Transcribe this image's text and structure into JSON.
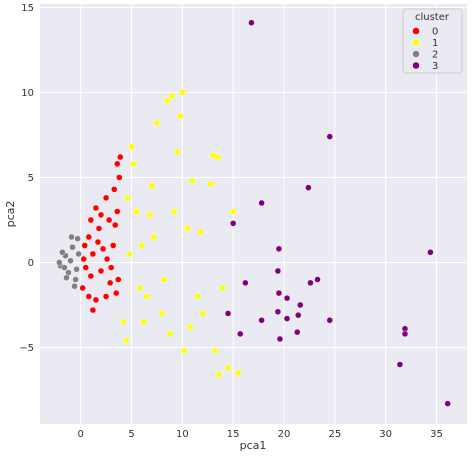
{
  "chart_data": {
    "type": "scatter",
    "title": "",
    "xlabel": "pca1",
    "ylabel": "pca2",
    "xlim": [
      -4,
      38
    ],
    "ylim": [
      -9.5,
      15.2
    ],
    "xticks": [
      0,
      5,
      10,
      15,
      20,
      25,
      30,
      35
    ],
    "yticks": [
      -5,
      0,
      5,
      10,
      15
    ],
    "grid": true,
    "legend": {
      "title": "cluster",
      "placement": "top-right",
      "entries": [
        {
          "label": "0",
          "color": "#ff0000"
        },
        {
          "label": "1",
          "color": "#ffff00"
        },
        {
          "label": "2",
          "color": "#808080"
        },
        {
          "label": "3",
          "color": "#800080"
        }
      ]
    },
    "colors": {
      "background": "#eaeaf2",
      "grid": "#ffffff",
      "point_edge": "#ffffff"
    },
    "series": [
      {
        "name": "0",
        "color": "#ff0000",
        "points": [
          [
            0.2,
            -1.5
          ],
          [
            0.8,
            -2.0
          ],
          [
            1.5,
            -2.2
          ],
          [
            2.5,
            -2.0
          ],
          [
            3.5,
            -1.8
          ],
          [
            1.0,
            -0.8
          ],
          [
            2.0,
            -0.5
          ],
          [
            3.0,
            -0.3
          ],
          [
            0.3,
            0.2
          ],
          [
            1.2,
            0.5
          ],
          [
            2.2,
            0.8
          ],
          [
            3.2,
            1.0
          ],
          [
            0.8,
            1.5
          ],
          [
            1.8,
            2.0
          ],
          [
            2.8,
            2.5
          ],
          [
            3.6,
            3.0
          ],
          [
            1.5,
            3.2
          ],
          [
            2.5,
            3.8
          ],
          [
            3.3,
            4.3
          ],
          [
            3.8,
            5.0
          ],
          [
            3.9,
            6.2
          ],
          [
            3.6,
            5.8
          ],
          [
            1.2,
            -2.8
          ],
          [
            2.9,
            -1.2
          ],
          [
            0.5,
            -0.3
          ],
          [
            1.7,
            1.2
          ],
          [
            2.6,
            0.2
          ],
          [
            3.4,
            2.2
          ],
          [
            2.0,
            2.8
          ],
          [
            1.0,
            2.5
          ],
          [
            0.4,
            1.0
          ],
          [
            3.7,
            -1.0
          ]
        ]
      },
      {
        "name": "1",
        "color": "#ffff00",
        "points": [
          [
            4.2,
            -3.5
          ],
          [
            4.5,
            -4.6
          ],
          [
            5.0,
            6.8
          ],
          [
            5.5,
            3.0
          ],
          [
            6.0,
            1.0
          ],
          [
            6.5,
            -2.0
          ],
          [
            7.0,
            4.5
          ],
          [
            7.5,
            8.2
          ],
          [
            8.0,
            -3.0
          ],
          [
            8.5,
            9.5
          ],
          [
            9.0,
            9.8
          ],
          [
            9.5,
            6.5
          ],
          [
            10.0,
            10.0
          ],
          [
            9.8,
            8.6
          ],
          [
            10.2,
            -5.2
          ],
          [
            10.5,
            2.0
          ],
          [
            11.0,
            4.8
          ],
          [
            11.5,
            -2.0
          ],
          [
            12.0,
            -3.0
          ],
          [
            12.8,
            4.6
          ],
          [
            13.0,
            6.3
          ],
          [
            13.2,
            -5.2
          ],
          [
            13.5,
            6.2
          ],
          [
            13.6,
            -6.6
          ],
          [
            14.0,
            -1.5
          ],
          [
            14.5,
            -6.2
          ],
          [
            15.0,
            3.0
          ],
          [
            15.5,
            -6.5
          ],
          [
            5.2,
            5.8
          ],
          [
            6.2,
            -3.5
          ],
          [
            7.2,
            1.5
          ],
          [
            8.2,
            -1.0
          ],
          [
            9.2,
            3.0
          ],
          [
            10.8,
            -3.8
          ],
          [
            4.8,
            0.5
          ],
          [
            5.8,
            -1.5
          ],
          [
            6.8,
            2.8
          ],
          [
            4.6,
            3.8
          ],
          [
            8.8,
            -4.2
          ],
          [
            11.8,
            1.8
          ]
        ]
      },
      {
        "name": "2",
        "color": "#808080",
        "points": [
          [
            -2.0,
            -0.2
          ],
          [
            -1.5,
            0.4
          ],
          [
            -1.2,
            -0.6
          ],
          [
            -0.8,
            0.9
          ],
          [
            -0.5,
            -1.0
          ],
          [
            -1.8,
            0.6
          ],
          [
            -1.0,
            0.1
          ],
          [
            -0.3,
            1.4
          ],
          [
            -0.6,
            -1.4
          ],
          [
            -1.4,
            -0.9
          ],
          [
            -0.2,
            0.5
          ],
          [
            -2.1,
            0.0
          ],
          [
            -0.9,
            1.5
          ],
          [
            -0.4,
            -0.4
          ],
          [
            -1.6,
            -0.3
          ]
        ]
      },
      {
        "name": "3",
        "color": "#800080",
        "points": [
          [
            16.8,
            14.1
          ],
          [
            24.5,
            7.4
          ],
          [
            22.4,
            4.4
          ],
          [
            17.8,
            3.5
          ],
          [
            15.0,
            2.3
          ],
          [
            19.5,
            0.8
          ],
          [
            19.4,
            -0.5
          ],
          [
            23.3,
            -1.0
          ],
          [
            22.6,
            -1.2
          ],
          [
            34.4,
            0.6
          ],
          [
            16.2,
            -1.2
          ],
          [
            19.5,
            -1.8
          ],
          [
            20.3,
            -2.1
          ],
          [
            21.6,
            -2.5
          ],
          [
            14.5,
            -3.0
          ],
          [
            19.4,
            -2.9
          ],
          [
            21.4,
            -3.1
          ],
          [
            17.8,
            -3.4
          ],
          [
            20.3,
            -3.3
          ],
          [
            24.5,
            -3.4
          ],
          [
            15.7,
            -4.2
          ],
          [
            21.3,
            -4.1
          ],
          [
            19.6,
            -4.5
          ],
          [
            31.9,
            -3.9
          ],
          [
            31.9,
            -4.2
          ],
          [
            31.4,
            -6.0
          ],
          [
            36.1,
            -8.3
          ]
        ]
      }
    ]
  }
}
